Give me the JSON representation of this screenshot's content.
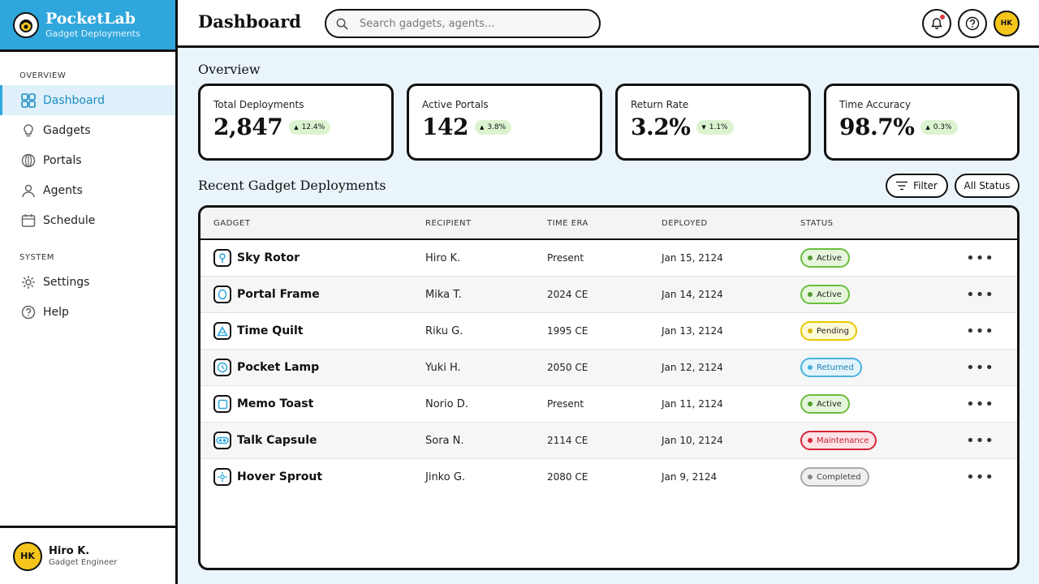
{
  "brand": {
    "name": "PocketLab",
    "subtitle": "Gadget Deployments"
  },
  "sidebar": {
    "overview_label": "OVERVIEW",
    "system_label": "SYSTEM",
    "items": [
      {
        "label": "Dashboard",
        "icon": "dashboard-icon",
        "active": true
      },
      {
        "label": "Gadgets",
        "icon": "lightbulb-icon"
      },
      {
        "label": "Portals",
        "icon": "portal-icon"
      },
      {
        "label": "Agents",
        "icon": "user-icon"
      },
      {
        "label": "Schedule",
        "icon": "calendar-icon"
      }
    ],
    "system_items": [
      {
        "label": "Settings",
        "icon": "gear-icon"
      },
      {
        "label": "Help",
        "icon": "help-icon"
      }
    ]
  },
  "user": {
    "initials": "HK",
    "name": "Hiro K.",
    "role": "Gadget Engineer"
  },
  "header": {
    "title": "Dashboard",
    "search_placeholder": "Search gadgets, agents...",
    "avatar_initials": "HK"
  },
  "overview": {
    "title": "Overview",
    "stats": [
      {
        "label": "Total Deployments",
        "value": "2,847",
        "delta": "12.4%",
        "direction": "up"
      },
      {
        "label": "Active Portals",
        "value": "142",
        "delta": "3.8%",
        "direction": "up"
      },
      {
        "label": "Return Rate",
        "value": "3.2%",
        "delta": "1.1%",
        "direction": "down"
      },
      {
        "label": "Time Accuracy",
        "value": "98.7%",
        "delta": "0.3%",
        "direction": "up"
      }
    ]
  },
  "deployments": {
    "title": "Recent Gadget Deployments",
    "filter_label": "Filter",
    "status_filter_label": "All Status",
    "columns": [
      "GADGET",
      "RECIPIENT",
      "TIME ERA",
      "DEPLOYED",
      "STATUS"
    ],
    "rows": [
      {
        "gadget": "Sky Rotor",
        "recipient": "Hiro K.",
        "era": "Present",
        "deployed": "Jan 15, 2124",
        "status": "Active"
      },
      {
        "gadget": "Portal Frame",
        "recipient": "Mika T.",
        "era": "2024 CE",
        "deployed": "Jan 14, 2124",
        "status": "Active"
      },
      {
        "gadget": "Time Quilt",
        "recipient": "Riku G.",
        "era": "1995 CE",
        "deployed": "Jan 13, 2124",
        "status": "Pending"
      },
      {
        "gadget": "Pocket Lamp",
        "recipient": "Yuki H.",
        "era": "2050 CE",
        "deployed": "Jan 12, 2124",
        "status": "Returned"
      },
      {
        "gadget": "Memo Toast",
        "recipient": "Norio D.",
        "era": "Present",
        "deployed": "Jan 11, 2124",
        "status": "Active"
      },
      {
        "gadget": "Talk Capsule",
        "recipient": "Sora N.",
        "era": "2114 CE",
        "deployed": "Jan 10, 2124",
        "status": "Maintenance"
      },
      {
        "gadget": "Hover Sprout",
        "recipient": "Jinko G.",
        "era": "2080 CE",
        "deployed": "Jan 9, 2124",
        "status": "Completed"
      }
    ],
    "more_label": "•••"
  },
  "colors": {
    "brand": "#2fa6dc",
    "active_badge": "#6abf3d",
    "pending_badge": "#e8c800",
    "returned_badge": "#48b2e0",
    "maintenance_badge": "#d8253a",
    "completed_badge": "#aaaaaa"
  }
}
